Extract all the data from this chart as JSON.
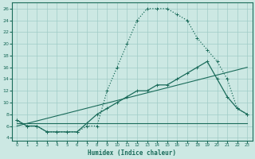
{
  "xlabel": "Humidex (Indice chaleur)",
  "bg_color": "#cce8e3",
  "line_color": "#1a6b5a",
  "grid_color": "#a0ccc7",
  "xlim": [
    -0.5,
    23.5
  ],
  "ylim": [
    3.5,
    27.0
  ],
  "xticks": [
    0,
    1,
    2,
    3,
    4,
    5,
    6,
    7,
    8,
    9,
    10,
    11,
    12,
    13,
    14,
    15,
    16,
    17,
    18,
    19,
    20,
    21,
    22,
    23
  ],
  "yticks": [
    4,
    6,
    8,
    10,
    12,
    14,
    16,
    18,
    20,
    22,
    24,
    26
  ],
  "curve1_x": [
    0,
    1,
    2,
    3,
    4,
    5,
    6,
    7,
    8,
    9,
    10,
    11,
    12,
    13,
    14,
    15,
    16,
    17,
    18,
    19,
    20,
    21,
    22,
    23
  ],
  "curve1_y": [
    7,
    6,
    6,
    5,
    5,
    5,
    5,
    6,
    6,
    12,
    16,
    20,
    24,
    26,
    26,
    26,
    25,
    24,
    21,
    19,
    17,
    14,
    9,
    8
  ],
  "curve2_x": [
    0,
    1,
    2,
    3,
    4,
    5,
    6,
    7,
    8,
    9,
    10,
    11,
    12,
    13,
    14,
    15,
    16,
    17,
    18,
    19,
    20,
    21,
    22,
    23
  ],
  "curve2_y": [
    7,
    6,
    6,
    5,
    5,
    5,
    5,
    6.5,
    8,
    9,
    10,
    11,
    12,
    12,
    13,
    13,
    14,
    15,
    16,
    17,
    14,
    11,
    9,
    8
  ],
  "curve3_x": [
    0,
    23
  ],
  "curve3_y": [
    6.5,
    6.5
  ],
  "curve4_x": [
    0,
    23
  ],
  "curve4_y": [
    6,
    16
  ]
}
